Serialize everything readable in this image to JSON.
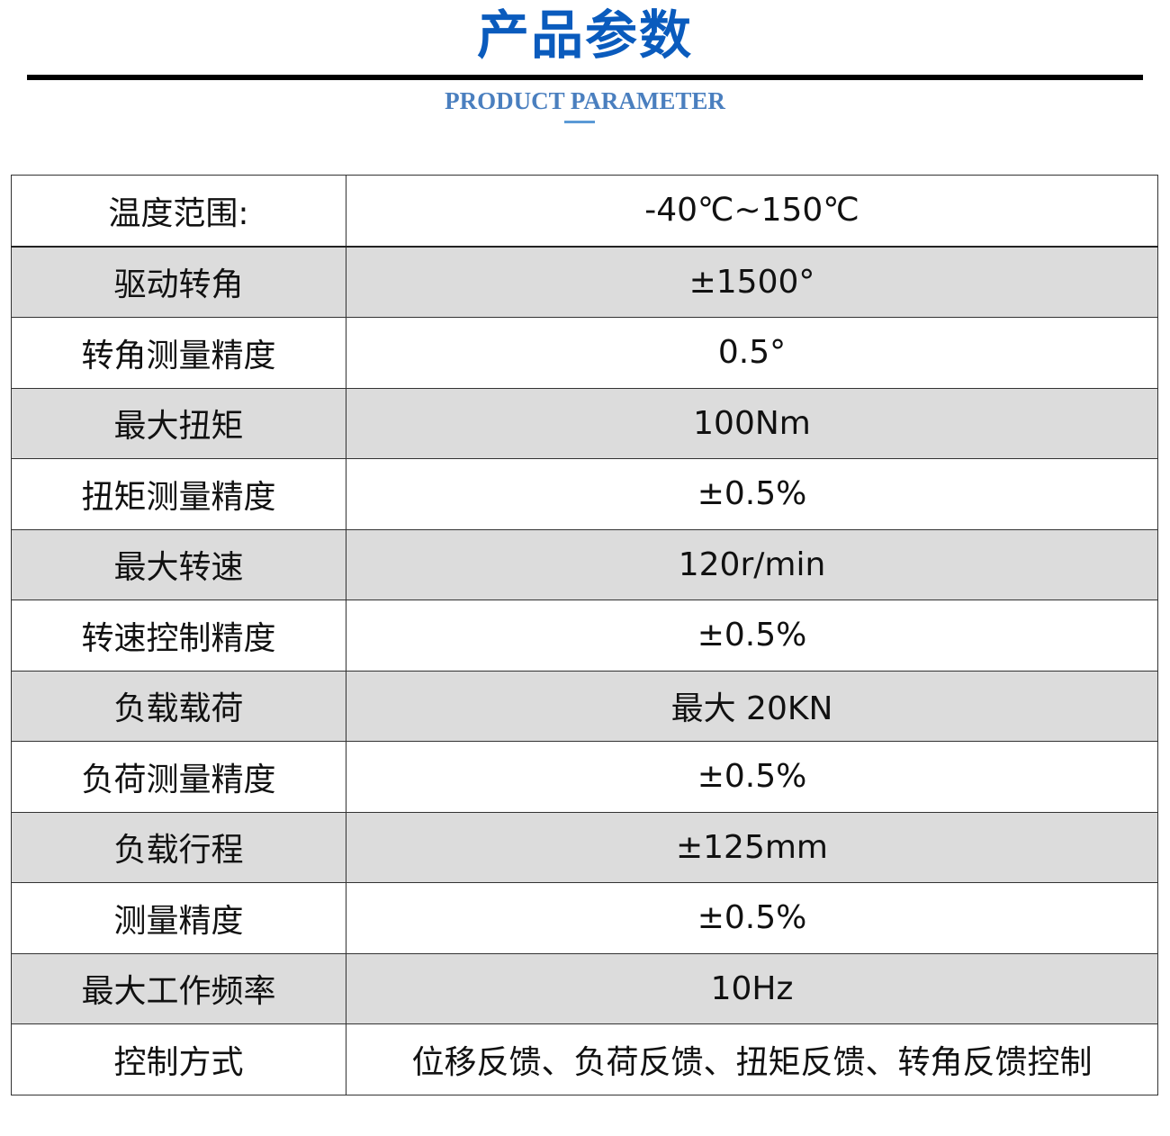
{
  "header": {
    "title": "产品参数",
    "subtitle": "PRODUCT PARAMETER",
    "accent_color": "#0a5bbd"
  },
  "params": [
    {
      "label": "温度范围:",
      "value": "-40℃~150℃"
    },
    {
      "label": "驱动转角",
      "value": "±1500°"
    },
    {
      "label": "转角测量精度",
      "value": "0.5°"
    },
    {
      "label": "最大扭矩",
      "value": "100Nm"
    },
    {
      "label": "扭矩测量精度",
      "value": "±0.5%"
    },
    {
      "label": "最大转速",
      "value": "120r/min"
    },
    {
      "label": "转速控制精度",
      "value": "±0.5%"
    },
    {
      "label": "负载载荷",
      "value": "最大 20KN"
    },
    {
      "label": "负荷测量精度",
      "value": "±0.5%"
    },
    {
      "label": "负载行程",
      "value": "±125mm"
    },
    {
      "label": "测量精度",
      "value": "±0.5%"
    },
    {
      "label": "最大工作频率",
      "value": "10Hz"
    },
    {
      "label": "控制方式",
      "value": "位移反馈、负荷反馈、扭矩反馈、转角反馈控制"
    }
  ]
}
